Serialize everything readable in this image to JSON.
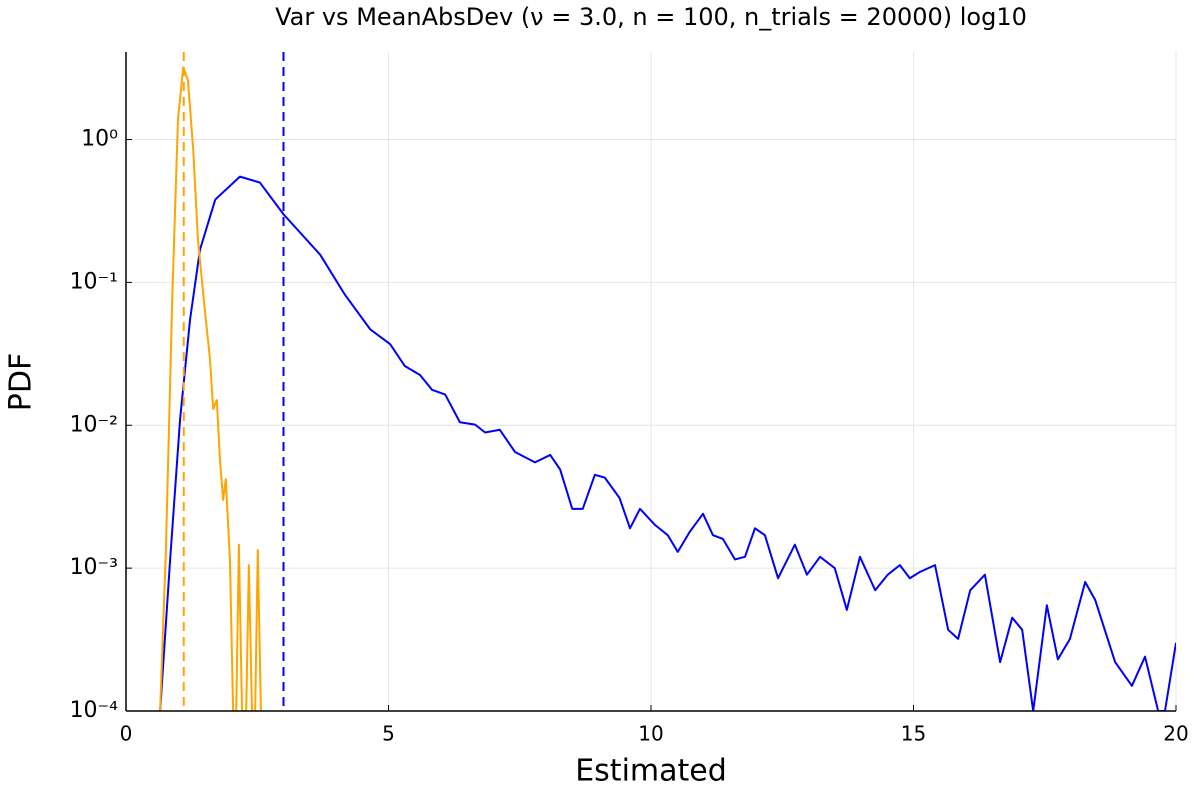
{
  "chart_data": {
    "type": "line",
    "title": "Var vs MeanAbsDev (ν = 3.0, n = 100, n_trials = 20000) log10",
    "x_label": "Estimated",
    "y_label": "PDF",
    "log_y": true,
    "grid": true,
    "xlim": [
      0,
      20
    ],
    "xticks": [
      0,
      5,
      10,
      15,
      20
    ],
    "ylim": [
      0.0001,
      4.1
    ],
    "yticks": [
      {
        "value": 0.0001,
        "label": "10⁻⁴"
      },
      {
        "value": 0.001,
        "label": "10⁻³"
      },
      {
        "value": 0.01,
        "label": "10⁻²"
      },
      {
        "value": 0.1,
        "label": "10⁻¹"
      },
      {
        "value": 1,
        "label": "10⁰"
      }
    ],
    "series": [
      {
        "color": "#0000ff",
        "x": [
          0.65,
          0.84,
          1.03,
          1.22,
          1.41,
          1.7,
          2.17,
          2.55,
          3.0,
          3.7,
          4.17,
          4.65,
          5.03,
          5.31,
          5.6,
          5.83,
          6.08,
          6.36,
          6.65,
          6.84,
          7.12,
          7.41,
          7.79,
          8.08,
          8.27,
          8.5,
          8.7,
          8.93,
          9.12,
          9.4,
          9.6,
          9.79,
          10.08,
          10.32,
          10.51,
          10.74,
          10.99,
          11.18,
          11.37,
          11.6,
          11.79,
          11.98,
          12.17,
          12.42,
          12.74,
          12.97,
          13.22,
          13.5,
          13.73,
          13.98,
          14.27,
          14.51,
          14.74,
          14.93,
          15.12,
          15.41,
          15.66,
          15.85,
          16.08,
          16.36,
          16.65,
          16.88,
          17.07,
          17.28,
          17.54,
          17.75,
          17.98,
          18.27,
          18.46,
          18.84,
          19.16,
          19.41,
          19.66,
          19.79,
          20.0
        ],
        "values": [
          0.0001,
          0.00114,
          0.011,
          0.055,
          0.17,
          0.38,
          0.55,
          0.5,
          0.3,
          0.156,
          0.082,
          0.047,
          0.037,
          0.026,
          0.0225,
          0.0177,
          0.0164,
          0.0105,
          0.0101,
          0.0089,
          0.0093,
          0.0065,
          0.0055,
          0.0062,
          0.0049,
          0.0026,
          0.0026,
          0.0045,
          0.0043,
          0.0031,
          0.0019,
          0.0026,
          0.002,
          0.0017,
          0.0013,
          0.0018,
          0.0024,
          0.0017,
          0.0016,
          0.00115,
          0.0012,
          0.0019,
          0.0017,
          0.00085,
          0.00146,
          0.0009,
          0.0012,
          0.001,
          0.00051,
          0.0012,
          0.0007,
          0.0009,
          0.00105,
          0.00085,
          0.00094,
          0.00105,
          0.00037,
          0.00032,
          0.0007,
          0.0009,
          0.00022,
          0.00045,
          0.00037,
          0.0001,
          0.00055,
          0.00023,
          0.00032,
          0.0008,
          0.0006,
          0.00022,
          0.00015,
          0.00024,
          0.0001,
          0.0001,
          0.0003
        ]
      },
      {
        "color": "#ffa500",
        "x": [
          0.65,
          0.76,
          0.88,
          0.99,
          1.09,
          1.18,
          1.28,
          1.37,
          1.5,
          1.6,
          1.66,
          1.73,
          1.79,
          1.85,
          1.9,
          1.98,
          2.04,
          2.1,
          2.15,
          2.21,
          2.29,
          2.34,
          2.4,
          2.46,
          2.51,
          2.57
        ],
        "values": [
          0.0001,
          0.00134,
          0.076,
          1.38,
          3.2,
          2.6,
          0.85,
          0.2,
          0.065,
          0.029,
          0.013,
          0.015,
          0.0057,
          0.003,
          0.0042,
          0.00114,
          0.0001,
          0.0001,
          0.00146,
          0.0001,
          0.0001,
          0.00105,
          0.0001,
          0.0001,
          0.00134,
          0.0001
        ]
      }
    ],
    "vlines": [
      {
        "x": 1.1,
        "color": "#ffa500"
      },
      {
        "x": 3.0,
        "color": "#0000ff"
      }
    ]
  }
}
